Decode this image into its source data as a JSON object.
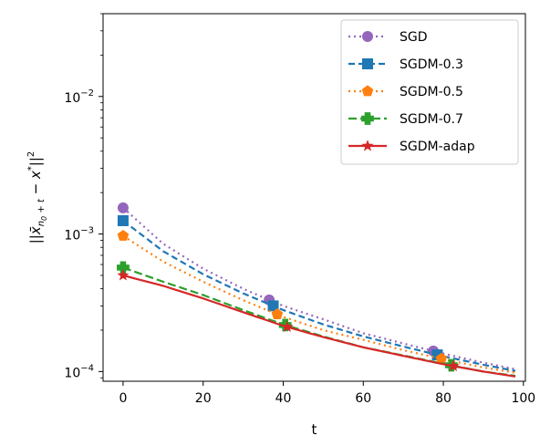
{
  "chart_data": {
    "type": "line",
    "xlabel": "t",
    "ylabel": "||x̄_{n0+t} − x*||²",
    "ylog": true,
    "xlim": [
      -5,
      100.5
    ],
    "ylim": [
      8.5e-05,
      0.04
    ],
    "x_ticks": [
      0,
      20,
      40,
      60,
      80,
      100
    ],
    "y_ticks": [
      {
        "value": 0.0001,
        "base": "10",
        "exp": "−4"
      },
      {
        "value": 0.001,
        "base": "10",
        "exp": "−3"
      },
      {
        "value": 0.01,
        "base": "10",
        "exp": "−2"
      }
    ],
    "grid": false,
    "legend_position": "top-right",
    "series": [
      {
        "name": "SGD",
        "color": "#9467bd",
        "dash": "2,4",
        "marker": "circle",
        "markers_x": [
          0,
          36.5,
          77.5
        ],
        "x": [
          0,
          10,
          20,
          30,
          40,
          50,
          60,
          70,
          80,
          90,
          98
        ],
        "values": [
          0.00155,
          0.00085,
          0.00056,
          0.0004,
          0.0003,
          0.00024,
          0.00019,
          0.00016,
          0.000135,
          0.000116,
          0.000104
        ]
      },
      {
        "name": "SGDM-0.3",
        "color": "#1f77b4",
        "dash": "7,4",
        "marker": "square",
        "markers_x": [
          0,
          37.5,
          78.5
        ],
        "x": [
          0,
          10,
          20,
          30,
          40,
          50,
          60,
          70,
          80,
          90,
          98
        ],
        "values": [
          0.00125,
          0.00075,
          0.00051,
          0.00037,
          0.00028,
          0.00022,
          0.00018,
          0.000152,
          0.000129,
          0.000112,
          0.000101
        ]
      },
      {
        "name": "SGDM-0.5",
        "color": "#ff7f0e",
        "dash": "2,4",
        "marker": "pentagon",
        "markers_x": [
          0,
          38.5,
          79.5
        ],
        "x": [
          0,
          10,
          20,
          30,
          40,
          50,
          60,
          70,
          80,
          90,
          98
        ],
        "values": [
          0.00097,
          0.00063,
          0.00045,
          0.00033,
          0.00025,
          0.0002,
          0.00017,
          0.000143,
          0.000123,
          0.000107,
          9.8e-05
        ]
      },
      {
        "name": "SGDM-0.7",
        "color": "#2ca02c",
        "dash": "9,4",
        "marker": "plus",
        "markers_x": [
          0,
          40.5,
          82
        ],
        "x": [
          0,
          10,
          20,
          30,
          40,
          50,
          60,
          70,
          80,
          90,
          98
        ],
        "values": [
          0.00057,
          0.00045,
          0.00036,
          0.00028,
          0.00022,
          0.00018,
          0.00015,
          0.000131,
          0.000114,
          0.0001,
          9.3e-05
        ]
      },
      {
        "name": "SGDM-adap",
        "color": "#d62728",
        "dash": "",
        "marker": "star",
        "markers_x": [
          0,
          41,
          82.5
        ],
        "x": [
          0,
          10,
          20,
          30,
          40,
          50,
          60,
          70,
          80,
          90,
          98
        ],
        "values": [
          0.0005,
          0.00042,
          0.00034,
          0.00027,
          0.000215,
          0.000178,
          0.00015,
          0.00013,
          0.000113,
          0.0001,
          9.2e-05
        ]
      }
    ]
  }
}
